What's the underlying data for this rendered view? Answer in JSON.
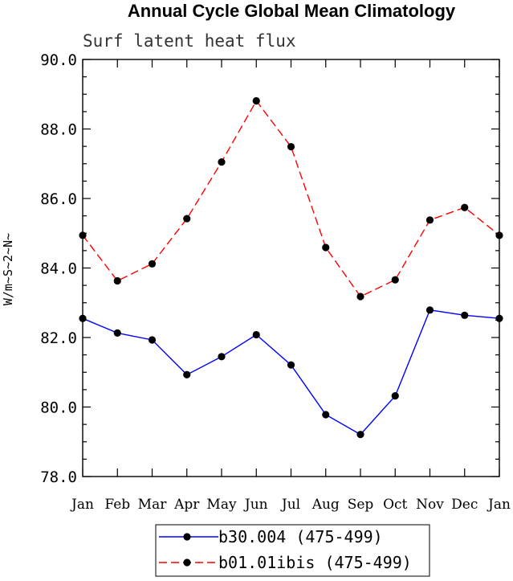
{
  "chart_data": {
    "type": "line",
    "title": "Annual Cycle Global Mean Climatology",
    "subtitle": "Surf latent heat flux",
    "ylabel": "W/m~S~2~N~",
    "xlabel": "",
    "categories": [
      "Jan",
      "Feb",
      "Mar",
      "Apr",
      "May",
      "Jun",
      "Jul",
      "Aug",
      "Sep",
      "Oct",
      "Nov",
      "Dec",
      "Jan"
    ],
    "ylim": [
      78.0,
      90.0
    ],
    "yticks": [
      "78.0",
      "80.0",
      "82.0",
      "84.0",
      "86.0",
      "88.0",
      "90.0"
    ],
    "grid": false,
    "legend_position": "bottom-center",
    "series": [
      {
        "name": "b30.004 (475-499)",
        "color": "#0000ff",
        "line_style": "solid",
        "marker": "filled-circle",
        "values": [
          82.55,
          82.13,
          81.93,
          80.93,
          81.45,
          82.08,
          81.21,
          79.78,
          79.21,
          80.32,
          82.79,
          82.64,
          82.55
        ]
      },
      {
        "name": "b01.01ibis (475-499)",
        "color": "#ff0000",
        "line_style": "dashed",
        "marker": "filled-circle",
        "values": [
          84.94,
          83.63,
          84.12,
          85.42,
          87.05,
          88.81,
          87.49,
          84.59,
          83.18,
          83.66,
          85.38,
          85.74,
          84.94
        ]
      }
    ]
  }
}
